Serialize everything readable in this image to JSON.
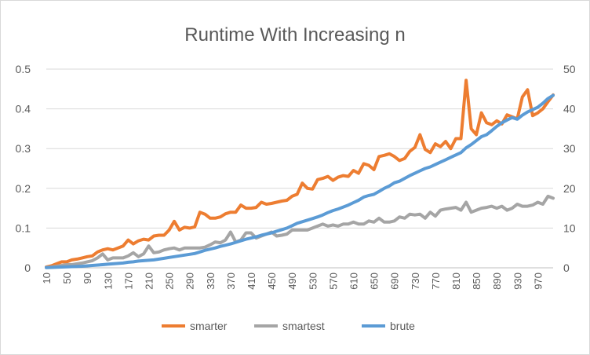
{
  "chart_data": {
    "type": "line",
    "title": "Runtime With Increasing n",
    "legend_position": "bottom",
    "gridlines": true,
    "x_tick_labels": [
      "10",
      "50",
      "90",
      "130",
      "170",
      "210",
      "250",
      "290",
      "330",
      "370",
      "410",
      "450",
      "490",
      "530",
      "570",
      "610",
      "650",
      "690",
      "730",
      "770",
      "810",
      "850",
      "890",
      "930",
      "970"
    ],
    "x": [
      10,
      20,
      30,
      40,
      50,
      60,
      70,
      80,
      90,
      100,
      110,
      120,
      130,
      140,
      150,
      160,
      170,
      180,
      190,
      200,
      210,
      220,
      230,
      240,
      250,
      260,
      270,
      280,
      290,
      300,
      310,
      320,
      330,
      340,
      350,
      360,
      370,
      380,
      390,
      400,
      410,
      420,
      430,
      440,
      450,
      460,
      470,
      480,
      490,
      500,
      510,
      520,
      530,
      540,
      550,
      560,
      570,
      580,
      590,
      600,
      610,
      620,
      630,
      640,
      650,
      660,
      670,
      680,
      690,
      700,
      710,
      720,
      730,
      740,
      750,
      760,
      770,
      780,
      790,
      800,
      810,
      820,
      830,
      840,
      850,
      860,
      870,
      880,
      890,
      900,
      910,
      920,
      930,
      940,
      950,
      960,
      970,
      980,
      990,
      1000
    ],
    "y_left": {
      "ticks": [
        "0",
        "0.1",
        "0.2",
        "0.3",
        "0.4",
        "0.5"
      ],
      "range": [
        0,
        0.5
      ]
    },
    "y_right": {
      "ticks": [
        "0",
        "10",
        "20",
        "30",
        "40",
        "50"
      ],
      "range": [
        0,
        50
      ]
    },
    "series": [
      {
        "name": "smarter",
        "axis": "left",
        "color": "#ed7d31",
        "values": [
          0.002,
          0.005,
          0.01,
          0.015,
          0.015,
          0.02,
          0.022,
          0.025,
          0.028,
          0.03,
          0.04,
          0.045,
          0.048,
          0.045,
          0.05,
          0.055,
          0.07,
          0.06,
          0.068,
          0.072,
          0.07,
          0.08,
          0.082,
          0.082,
          0.095,
          0.117,
          0.095,
          0.102,
          0.1,
          0.103,
          0.14,
          0.135,
          0.125,
          0.125,
          0.128,
          0.136,
          0.14,
          0.14,
          0.158,
          0.15,
          0.15,
          0.152,
          0.165,
          0.16,
          0.162,
          0.165,
          0.168,
          0.17,
          0.18,
          0.185,
          0.213,
          0.2,
          0.198,
          0.222,
          0.225,
          0.23,
          0.22,
          0.228,
          0.232,
          0.23,
          0.245,
          0.238,
          0.262,
          0.258,
          0.247,
          0.28,
          0.283,
          0.287,
          0.28,
          0.27,
          0.275,
          0.293,
          0.303,
          0.335,
          0.298,
          0.29,
          0.312,
          0.305,
          0.318,
          0.3,
          0.325,
          0.325,
          0.472,
          0.35,
          0.335,
          0.39,
          0.365,
          0.36,
          0.37,
          0.362,
          0.385,
          0.38,
          0.375,
          0.43,
          0.448,
          0.383,
          0.39,
          0.4,
          0.418,
          0.435
        ]
      },
      {
        "name": "smartest",
        "axis": "left",
        "color": "#a5a5a5",
        "values": [
          0.001,
          0.002,
          0.004,
          0.006,
          0.008,
          0.008,
          0.01,
          0.012,
          0.015,
          0.018,
          0.025,
          0.035,
          0.02,
          0.025,
          0.025,
          0.025,
          0.03,
          0.038,
          0.028,
          0.035,
          0.055,
          0.038,
          0.04,
          0.045,
          0.048,
          0.05,
          0.045,
          0.05,
          0.05,
          0.05,
          0.05,
          0.052,
          0.058,
          0.065,
          0.063,
          0.07,
          0.09,
          0.065,
          0.07,
          0.088,
          0.088,
          0.075,
          0.08,
          0.085,
          0.09,
          0.08,
          0.082,
          0.085,
          0.095,
          0.095,
          0.095,
          0.095,
          0.1,
          0.105,
          0.11,
          0.105,
          0.108,
          0.105,
          0.11,
          0.11,
          0.115,
          0.11,
          0.11,
          0.118,
          0.115,
          0.125,
          0.115,
          0.115,
          0.118,
          0.128,
          0.125,
          0.135,
          0.133,
          0.135,
          0.125,
          0.14,
          0.13,
          0.145,
          0.148,
          0.15,
          0.152,
          0.145,
          0.165,
          0.14,
          0.145,
          0.15,
          0.152,
          0.155,
          0.15,
          0.155,
          0.145,
          0.15,
          0.16,
          0.155,
          0.155,
          0.158,
          0.165,
          0.16,
          0.18,
          0.175
        ]
      },
      {
        "name": "brute",
        "axis": "right",
        "color": "#5b9bd5",
        "values": [
          0.05,
          0.1,
          0.15,
          0.2,
          0.25,
          0.3,
          0.35,
          0.4,
          0.5,
          0.6,
          0.7,
          0.8,
          0.9,
          1.0,
          1.1,
          1.2,
          1.4,
          1.5,
          1.7,
          1.8,
          1.9,
          2.0,
          2.2,
          2.4,
          2.6,
          2.8,
          3.0,
          3.2,
          3.4,
          3.6,
          4.0,
          4.4,
          4.7,
          5.0,
          5.4,
          5.7,
          6.0,
          6.4,
          6.8,
          7.2,
          7.5,
          7.8,
          8.2,
          8.5,
          8.8,
          9.2,
          9.6,
          10.0,
          10.6,
          11.2,
          11.6,
          12.0,
          12.4,
          12.8,
          13.3,
          13.9,
          14.4,
          14.8,
          15.3,
          15.8,
          16.4,
          17.0,
          17.8,
          18.2,
          18.5,
          19.2,
          20.0,
          20.6,
          21.4,
          21.8,
          22.5,
          23.2,
          23.8,
          24.4,
          25.0,
          25.4,
          26.0,
          26.6,
          27.2,
          27.8,
          28.4,
          29.0,
          30.2,
          31.0,
          32.0,
          33.0,
          33.5,
          34.5,
          35.6,
          36.5,
          37.2,
          37.8,
          37.4,
          38.4,
          39.2,
          39.8,
          40.4,
          41.4,
          42.6,
          43.4
        ]
      }
    ]
  }
}
